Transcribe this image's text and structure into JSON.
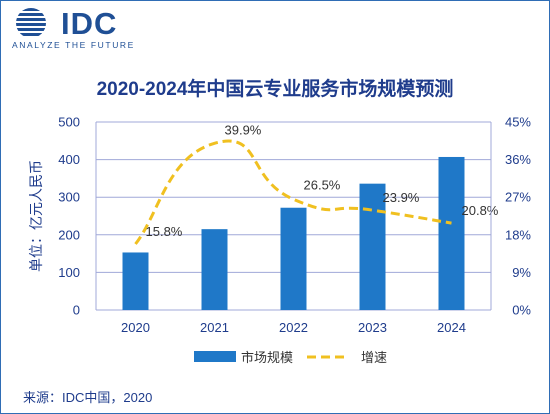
{
  "logo": {
    "name": "IDC",
    "tagline": "ANALYZE THE FUTURE",
    "color": "#1f4f95"
  },
  "colors": {
    "bar": "#1f78c8",
    "line": "#f0c020",
    "axis_text": "#1f3c8c",
    "grid": "#a0a8d8",
    "border": "#2f6db5"
  },
  "source": "来源：IDC中国，2020",
  "chart_data": {
    "type": "bar",
    "title": "2020-2024年中国云专业服务市场规模预测",
    "categories": [
      "2020",
      "2021",
      "2022",
      "2023",
      "2024"
    ],
    "ylabel": "单位：亿元人民币",
    "ylim": [
      0,
      500
    ],
    "y_ticks": [
      "0",
      "100",
      "200",
      "300",
      "400",
      "500"
    ],
    "y2lim": [
      0,
      45
    ],
    "y2_ticks": [
      "0%",
      "9%",
      "18%",
      "27%",
      "36%",
      "45%"
    ],
    "grid": true,
    "legend_position": "bottom",
    "series": [
      {
        "name": "市场规模",
        "type": "bar",
        "axis": "left",
        "values": [
          153,
          215,
          272,
          336,
          407
        ]
      },
      {
        "name": "增速",
        "type": "line",
        "style": "dashed",
        "smooth": true,
        "axis": "right",
        "values": [
          15.8,
          39.9,
          26.5,
          23.9,
          20.8
        ],
        "labels": [
          "15.8%",
          "39.9%",
          "26.5%",
          "23.9%",
          "20.8%"
        ]
      }
    ]
  }
}
